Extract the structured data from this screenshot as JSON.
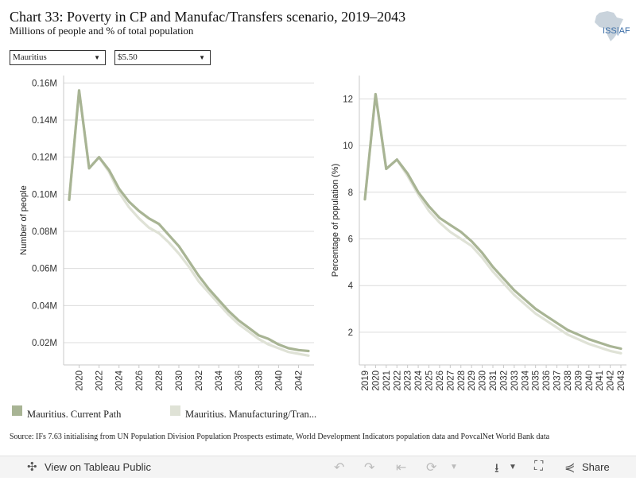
{
  "header": {
    "title": "Chart 33: Poverty in CP and Manufac/Transfers scenario, 2019–2043",
    "subtitle": "Millions of people and % of total population",
    "logo_text": "ISS|AFI"
  },
  "filters": {
    "country": "Mauritius",
    "poverty_line": "$5.50"
  },
  "colors": {
    "current_path": "#a8b494",
    "manufacturing": "#dfe2d6"
  },
  "legend": {
    "current_path": "Mauritius. Current Path",
    "manufacturing": "Mauritius. Manufacturing/Tran..."
  },
  "source": "Source: IFs 7.63 initialising from UN Population Division Population Prospects estimate, World Development Indicators population data and PovcalNet World Bank data",
  "footer": {
    "view_label": "View on Tableau Public",
    "share_label": "Share"
  },
  "chart_data": [
    {
      "type": "line",
      "title": "",
      "xlabel": "",
      "ylabel": "Number of people",
      "x": [
        2019,
        2020,
        2021,
        2022,
        2023,
        2024,
        2025,
        2026,
        2027,
        2028,
        2029,
        2030,
        2031,
        2032,
        2033,
        2034,
        2035,
        2036,
        2037,
        2038,
        2039,
        2040,
        2041,
        2042,
        2043
      ],
      "x_ticks": [
        "2020",
        "2022",
        "2024",
        "2026",
        "2028",
        "2030",
        "2032",
        "2034",
        "2036",
        "2038",
        "2040",
        "2042"
      ],
      "y_ticks": [
        "0.02M",
        "0.04M",
        "0.06M",
        "0.08M",
        "0.10M",
        "0.12M",
        "0.14M",
        "0.16M"
      ],
      "ylim": [
        0.008,
        0.164
      ],
      "grid": true,
      "series": [
        {
          "name": "Mauritius. Current Path",
          "values": [
            0.097,
            0.156,
            0.114,
            0.12,
            0.113,
            0.103,
            0.096,
            0.091,
            0.087,
            0.084,
            0.078,
            0.072,
            0.064,
            0.056,
            0.049,
            0.043,
            0.037,
            0.032,
            0.028,
            0.024,
            0.022,
            0.019,
            0.017,
            0.016,
            0.0155
          ]
        },
        {
          "name": "Mauritius. Manufacturing/Tran...",
          "values": [
            0.097,
            0.156,
            0.114,
            0.12,
            0.112,
            0.101,
            0.093,
            0.087,
            0.082,
            0.079,
            0.074,
            0.068,
            0.061,
            0.053,
            0.047,
            0.041,
            0.035,
            0.03,
            0.026,
            0.022,
            0.019,
            0.017,
            0.015,
            0.014,
            0.013
          ]
        }
      ]
    },
    {
      "type": "line",
      "title": "",
      "xlabel": "",
      "ylabel": "Percentage of population (%)",
      "x": [
        2019,
        2020,
        2021,
        2022,
        2023,
        2024,
        2025,
        2026,
        2027,
        2028,
        2029,
        2030,
        2031,
        2032,
        2033,
        2034,
        2035,
        2036,
        2037,
        2038,
        2039,
        2040,
        2041,
        2042,
        2043
      ],
      "x_ticks": [
        "2019",
        "2020",
        "2021",
        "2022",
        "2023",
        "2024",
        "2025",
        "2026",
        "2027",
        "2028",
        "2029",
        "2030",
        "2031",
        "2032",
        "2033",
        "2034",
        "2035",
        "2036",
        "2037",
        "2038",
        "2039",
        "2040",
        "2041",
        "2042",
        "2043"
      ],
      "y_ticks": [
        "2",
        "4",
        "6",
        "8",
        "10",
        "12"
      ],
      "ylim": [
        0.6,
        13.0
      ],
      "grid": true,
      "series": [
        {
          "name": "Mauritius. Current Path",
          "values": [
            7.7,
            12.2,
            9.0,
            9.4,
            8.8,
            8.0,
            7.4,
            6.9,
            6.6,
            6.3,
            5.9,
            5.4,
            4.8,
            4.3,
            3.8,
            3.4,
            3.0,
            2.7,
            2.4,
            2.1,
            1.9,
            1.7,
            1.55,
            1.4,
            1.3
          ]
        },
        {
          "name": "Mauritius. Manufacturing/Tran...",
          "values": [
            7.7,
            12.2,
            9.0,
            9.4,
            8.7,
            7.9,
            7.2,
            6.7,
            6.3,
            6.0,
            5.7,
            5.2,
            4.6,
            4.1,
            3.6,
            3.2,
            2.8,
            2.5,
            2.2,
            1.9,
            1.7,
            1.5,
            1.35,
            1.2,
            1.1
          ]
        }
      ]
    }
  ]
}
